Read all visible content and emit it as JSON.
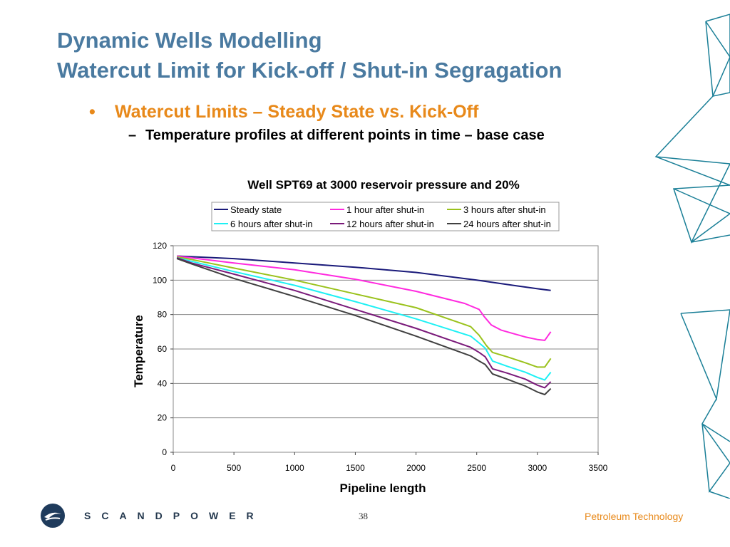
{
  "slide": {
    "title_line1": "Dynamic Wells Modelling",
    "title_line2": "Watercut Limit for Kick-off / Shut-in Segragation",
    "bullet1_marker": "•",
    "bullet1": "Watercut Limits – Steady State vs. Kick-Off",
    "bullet2_marker": "–",
    "bullet2": "Temperature profiles at different points in time – base case",
    "page_number": "38",
    "brand": "SCANDPOWER",
    "division": "Petroleum Technology",
    "logo_icon": "scandpower-logo-icon",
    "colors": {
      "title": "#4a7aa0",
      "bullet": "#e8891a",
      "deco": "#1a7f97"
    }
  },
  "chart_data": {
    "type": "line",
    "title": "Well SPT69 at 3000 reservoir pressure and 20%",
    "xlabel": "Pipeline length",
    "ylabel": "Temperature",
    "xlim": [
      0,
      3500
    ],
    "ylim": [
      0,
      120
    ],
    "xticks": [
      0,
      500,
      1000,
      1500,
      2000,
      2500,
      3000,
      3500
    ],
    "yticks": [
      0,
      20,
      40,
      60,
      80,
      100,
      120
    ],
    "grid": "horizontal",
    "legend_position": "top",
    "series": [
      {
        "name": "Steady state",
        "color": "#1a1a7a",
        "points": [
          [
            30,
            114
          ],
          [
            500,
            112.5
          ],
          [
            1000,
            110
          ],
          [
            1500,
            107.5
          ],
          [
            2000,
            104.5
          ],
          [
            2500,
            100
          ],
          [
            2800,
            97
          ],
          [
            3000,
            95
          ],
          [
            3110,
            94
          ]
        ]
      },
      {
        "name": "1 hour after shut-in",
        "color": "#ff2adf",
        "points": [
          [
            30,
            114
          ],
          [
            500,
            110
          ],
          [
            1000,
            106
          ],
          [
            1500,
            100.5
          ],
          [
            2000,
            93.5
          ],
          [
            2400,
            86.5
          ],
          [
            2520,
            83
          ],
          [
            2560,
            79
          ],
          [
            2620,
            74
          ],
          [
            2700,
            71
          ],
          [
            2800,
            69
          ],
          [
            2900,
            67
          ],
          [
            3000,
            65.5
          ],
          [
            3060,
            65
          ],
          [
            3110,
            70
          ]
        ]
      },
      {
        "name": "3 hours after shut-in",
        "color": "#9ac21c",
        "points": [
          [
            30,
            113.5
          ],
          [
            150,
            112
          ],
          [
            500,
            107
          ],
          [
            1000,
            100
          ],
          [
            1500,
            92
          ],
          [
            2000,
            84
          ],
          [
            2450,
            73
          ],
          [
            2520,
            68
          ],
          [
            2580,
            62
          ],
          [
            2630,
            58
          ],
          [
            2750,
            55.5
          ],
          [
            2900,
            52
          ],
          [
            3000,
            49.5
          ],
          [
            3060,
            49.5
          ],
          [
            3110,
            54.5
          ]
        ]
      },
      {
        "name": "6 hours after shut-in",
        "color": "#1ef0f4",
        "points": [
          [
            30,
            113
          ],
          [
            150,
            111
          ],
          [
            500,
            105
          ],
          [
            1000,
            97
          ],
          [
            1500,
            87.5
          ],
          [
            2000,
            77.5
          ],
          [
            2450,
            67.5
          ],
          [
            2520,
            63.5
          ],
          [
            2570,
            60.5
          ],
          [
            2630,
            53
          ],
          [
            2750,
            50
          ],
          [
            2900,
            46.5
          ],
          [
            3000,
            43.5
          ],
          [
            3060,
            42
          ],
          [
            3110,
            46.5
          ]
        ]
      },
      {
        "name": "12 hours after shut-in",
        "color": "#7a1a7a",
        "points": [
          [
            30,
            113
          ],
          [
            150,
            110
          ],
          [
            500,
            103.5
          ],
          [
            1000,
            94
          ],
          [
            1500,
            83
          ],
          [
            2000,
            72
          ],
          [
            2450,
            61
          ],
          [
            2520,
            58
          ],
          [
            2570,
            55.5
          ],
          [
            2630,
            48.5
          ],
          [
            2750,
            46
          ],
          [
            2900,
            42.5
          ],
          [
            3000,
            39
          ],
          [
            3060,
            37.5
          ],
          [
            3110,
            41
          ]
        ]
      },
      {
        "name": "24 hours after shut-in",
        "color": "#404040",
        "points": [
          [
            30,
            112.5
          ],
          [
            150,
            109.5
          ],
          [
            500,
            101
          ],
          [
            1000,
            90.5
          ],
          [
            1500,
            79.5
          ],
          [
            2000,
            67.5
          ],
          [
            2450,
            56
          ],
          [
            2520,
            53
          ],
          [
            2570,
            51
          ],
          [
            2630,
            45.5
          ],
          [
            2750,
            42.5
          ],
          [
            2900,
            38.5
          ],
          [
            3000,
            35
          ],
          [
            3060,
            33.5
          ],
          [
            3110,
            37
          ]
        ]
      }
    ]
  }
}
